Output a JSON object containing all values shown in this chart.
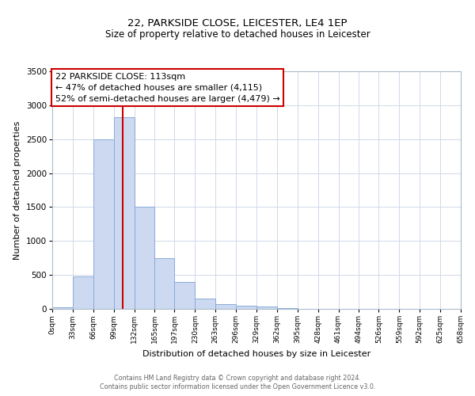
{
  "title": "22, PARKSIDE CLOSE, LEICESTER, LE4 1EP",
  "subtitle": "Size of property relative to detached houses in Leicester",
  "xlabel": "Distribution of detached houses by size in Leicester",
  "ylabel": "Number of detached properties",
  "bin_edges": [
    0,
    33,
    66,
    99,
    132,
    165,
    197,
    230,
    263,
    296,
    329,
    362,
    395,
    428,
    461,
    494,
    526,
    559,
    592,
    625,
    658
  ],
  "bar_heights": [
    20,
    480,
    2500,
    2820,
    1500,
    750,
    400,
    150,
    70,
    50,
    30,
    10,
    5,
    2,
    1,
    0,
    0,
    0,
    0,
    0
  ],
  "bar_color": "#ccd9f0",
  "bar_edge_color": "#8aaad8",
  "vline_x": 113,
  "vline_color": "#cc0000",
  "ylim": [
    0,
    3500
  ],
  "annotation_title": "22 PARKSIDE CLOSE: 113sqm",
  "annotation_line1": "← 47% of detached houses are smaller (4,115)",
  "annotation_line2": "52% of semi-detached houses are larger (4,479) →",
  "annotation_box_color": "#ffffff",
  "annotation_box_edgecolor": "#cc0000",
  "footnote1": "Contains HM Land Registry data © Crown copyright and database right 2024.",
  "footnote2": "Contains public sector information licensed under the Open Government Licence v3.0.",
  "tick_labels": [
    "0sqm",
    "33sqm",
    "66sqm",
    "99sqm",
    "132sqm",
    "165sqm",
    "197sqm",
    "230sqm",
    "263sqm",
    "296sqm",
    "329sqm",
    "362sqm",
    "395sqm",
    "428sqm",
    "461sqm",
    "494sqm",
    "526sqm",
    "559sqm",
    "592sqm",
    "625sqm",
    "658sqm"
  ],
  "background_color": "#ffffff",
  "axes_bg_color": "#ffffff",
  "grid_color": "#d0d8e8",
  "title_fontsize": 9.5,
  "subtitle_fontsize": 8.5
}
